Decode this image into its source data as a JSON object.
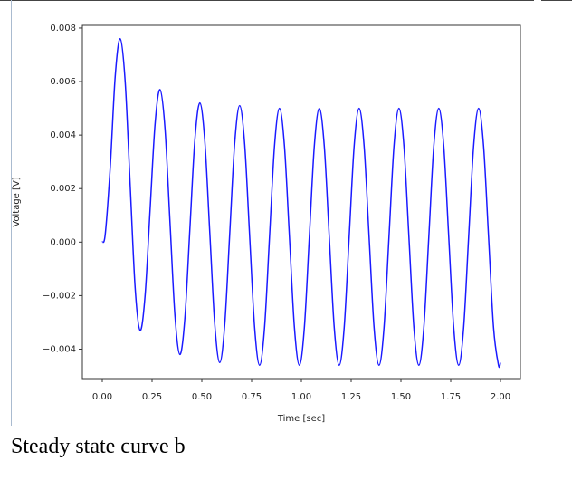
{
  "chart_data": {
    "type": "line",
    "xlabel": "Time [sec]",
    "ylabel": "Voltage [V]",
    "xlim": [
      -0.1,
      2.1
    ],
    "ylim": [
      -0.0051,
      0.0081
    ],
    "xticks": [
      {
        "value": 0,
        "label": "0.00"
      },
      0.25,
      {
        "value": 0.5,
        "label": "0.50"
      },
      0.75,
      {
        "value": 1,
        "label": "1.00"
      },
      1.25,
      {
        "value": 1.5,
        "label": "1.50"
      },
      1.75,
      {
        "value": 2,
        "label": "2.00"
      }
    ],
    "yticks": [
      {
        "value": -0.004,
        "label": "−0.004"
      },
      {
        "value": -0.002,
        "label": "−0.002"
      },
      {
        "value": 0,
        "label": "0.000"
      },
      0.002,
      0.004,
      0.006,
      0.008
    ],
    "grid": false,
    "series": [
      {
        "color": "#1a1aff",
        "x": [
          0,
          0.015,
          0.04,
          0.065,
          0.09,
          0.115,
          0.14,
          0.165,
          0.19,
          0.215,
          0.24,
          0.265,
          0.29,
          0.315,
          0.34,
          0.365,
          0.39,
          0.415,
          0.44,
          0.465,
          0.49,
          0.515,
          0.54,
          0.565,
          0.59,
          0.615,
          0.64,
          0.665,
          0.69,
          0.715,
          0.74,
          0.765,
          0.79,
          0.815,
          0.84,
          0.865,
          0.89,
          0.915,
          0.94,
          0.965,
          0.99,
          1.015,
          1.04,
          1.065,
          1.09,
          1.115,
          1.14,
          1.165,
          1.19,
          1.215,
          1.24,
          1.265,
          1.29,
          1.315,
          1.34,
          1.365,
          1.39,
          1.415,
          1.44,
          1.465,
          1.49,
          1.515,
          1.54,
          1.565,
          1.59,
          1.615,
          1.64,
          1.665,
          1.69,
          1.715,
          1.74,
          1.765,
          1.79,
          1.815,
          1.84,
          1.865,
          1.89,
          1.915,
          1.94,
          1.965,
          1.99,
          2.0
        ],
        "values": [
          0,
          0.0003,
          0.0028,
          0.0062,
          0.0076,
          0.006,
          0.00215,
          -0.0017,
          -0.0033,
          -0.002,
          0.0012,
          0.0044,
          0.0057,
          0.00425,
          0.00075,
          -0.00275,
          -0.0042,
          -0.00282,
          0.0005,
          0.00382,
          0.0052,
          0.00378,
          0.00035,
          -0.00308,
          -0.0045,
          -0.00309,
          0.0003,
          0.00369,
          0.0051,
          0.00368,
          0.00025,
          -0.00318,
          -0.0046,
          -0.00319,
          0.0002,
          0.00359,
          0.005,
          0.00359,
          0.0002,
          -0.00319,
          -0.0046,
          -0.00319,
          0.0002,
          0.00359,
          0.005,
          0.00359,
          0.0002,
          -0.00319,
          -0.0046,
          -0.00319,
          0.0002,
          0.00359,
          0.005,
          0.00359,
          0.0002,
          -0.00319,
          -0.0046,
          -0.00319,
          0.0002,
          0.00359,
          0.005,
          0.00359,
          0.0002,
          -0.00319,
          -0.0046,
          -0.00319,
          0.0002,
          0.00359,
          0.005,
          0.00359,
          0.0002,
          -0.00319,
          -0.0046,
          -0.00319,
          0.0002,
          0.00359,
          0.005,
          0.00359,
          0.0002,
          -0.00319,
          -0.0046,
          -0.0045
        ]
      }
    ]
  },
  "caption": "Steady state curve b"
}
